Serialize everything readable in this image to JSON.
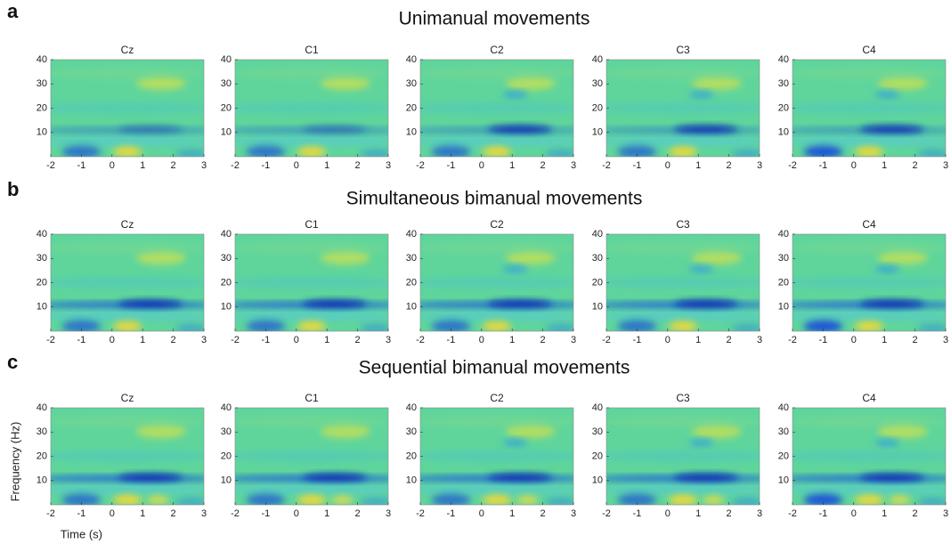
{
  "panel_labels": [
    "a",
    "b",
    "c"
  ],
  "row_titles": [
    "Unimanual movements",
    "Simultaneous bimanual movements",
    "Sequential bimanual movements"
  ],
  "chart_data": [
    {
      "type": "heatmap",
      "title": "Cz",
      "xlim": [
        -2,
        3
      ],
      "ylim": [
        0,
        40
      ],
      "xticks": [
        -2,
        -1,
        0,
        1,
        2,
        3
      ],
      "yticks": [
        10,
        20,
        30,
        40
      ]
    },
    {
      "type": "heatmap",
      "title": "C1",
      "xlim": [
        -2,
        3
      ],
      "ylim": [
        0,
        40
      ],
      "xticks": [
        -2,
        -1,
        0,
        1,
        2,
        3
      ],
      "yticks": [
        10,
        20,
        30,
        40
      ]
    },
    {
      "type": "heatmap",
      "title": "C2",
      "xlim": [
        -2,
        3
      ],
      "ylim": [
        0,
        40
      ],
      "xticks": [
        -2,
        -1,
        0,
        1,
        2,
        3
      ],
      "yticks": [
        10,
        20,
        30,
        40
      ]
    },
    {
      "type": "heatmap",
      "title": "C3",
      "xlim": [
        -2,
        3
      ],
      "ylim": [
        0,
        40
      ],
      "xticks": [
        -2,
        -1,
        0,
        1,
        2,
        3
      ],
      "yticks": [
        10,
        20,
        30,
        40
      ]
    },
    {
      "type": "heatmap",
      "title": "C4",
      "xlim": [
        -2,
        3
      ],
      "ylim": [
        0,
        40
      ],
      "xticks": [
        -2,
        -1,
        0,
        1,
        2,
        3
      ],
      "yticks": [
        10,
        20,
        30,
        40
      ]
    },
    {
      "type": "heatmap",
      "title": "Cz",
      "xlim": [
        -2,
        3
      ],
      "ylim": [
        0,
        40
      ],
      "xticks": [
        -2,
        -1,
        0,
        1,
        2,
        3
      ],
      "yticks": [
        10,
        20,
        30,
        40
      ]
    },
    {
      "type": "heatmap",
      "title": "C1",
      "xlim": [
        -2,
        3
      ],
      "ylim": [
        0,
        40
      ],
      "xticks": [
        -2,
        -1,
        0,
        1,
        2,
        3
      ],
      "yticks": [
        10,
        20,
        30,
        40
      ]
    },
    {
      "type": "heatmap",
      "title": "C2",
      "xlim": [
        -2,
        3
      ],
      "ylim": [
        0,
        40
      ],
      "xticks": [
        -2,
        -1,
        0,
        1,
        2,
        3
      ],
      "yticks": [
        10,
        20,
        30,
        40
      ]
    },
    {
      "type": "heatmap",
      "title": "C3",
      "xlim": [
        -2,
        3
      ],
      "ylim": [
        0,
        40
      ],
      "xticks": [
        -2,
        -1,
        0,
        1,
        2,
        3
      ],
      "yticks": [
        10,
        20,
        30,
        40
      ]
    },
    {
      "type": "heatmap",
      "title": "C4",
      "xlim": [
        -2,
        3
      ],
      "ylim": [
        0,
        40
      ],
      "xticks": [
        -2,
        -1,
        0,
        1,
        2,
        3
      ],
      "yticks": [
        10,
        20,
        30,
        40
      ]
    },
    {
      "type": "heatmap",
      "title": "Cz",
      "xlim": [
        -2,
        3
      ],
      "ylim": [
        0,
        40
      ],
      "xticks": [
        -2,
        -1,
        0,
        1,
        2,
        3
      ],
      "yticks": [
        10,
        20,
        30,
        40
      ],
      "x_label": "Time  (s)",
      "y_label": "Frequency (Hz)"
    },
    {
      "type": "heatmap",
      "title": "C1",
      "xlim": [
        -2,
        3
      ],
      "ylim": [
        0,
        40
      ],
      "xticks": [
        -2,
        -1,
        0,
        1,
        2,
        3
      ],
      "yticks": [
        10,
        20,
        30,
        40
      ]
    },
    {
      "type": "heatmap",
      "title": "C2",
      "xlim": [
        -2,
        3
      ],
      "ylim": [
        0,
        40
      ],
      "xticks": [
        -2,
        -1,
        0,
        1,
        2,
        3
      ],
      "yticks": [
        10,
        20,
        30,
        40
      ]
    },
    {
      "type": "heatmap",
      "title": "C3",
      "xlim": [
        -2,
        3
      ],
      "ylim": [
        0,
        40
      ],
      "xticks": [
        -2,
        -1,
        0,
        1,
        2,
        3
      ],
      "yticks": [
        10,
        20,
        30,
        40
      ]
    },
    {
      "type": "heatmap",
      "title": "C4",
      "xlim": [
        -2,
        3
      ],
      "ylim": [
        0,
        40
      ],
      "xticks": [
        -2,
        -1,
        0,
        1,
        2,
        3
      ],
      "yticks": [
        10,
        20,
        30,
        40
      ]
    }
  ]
}
